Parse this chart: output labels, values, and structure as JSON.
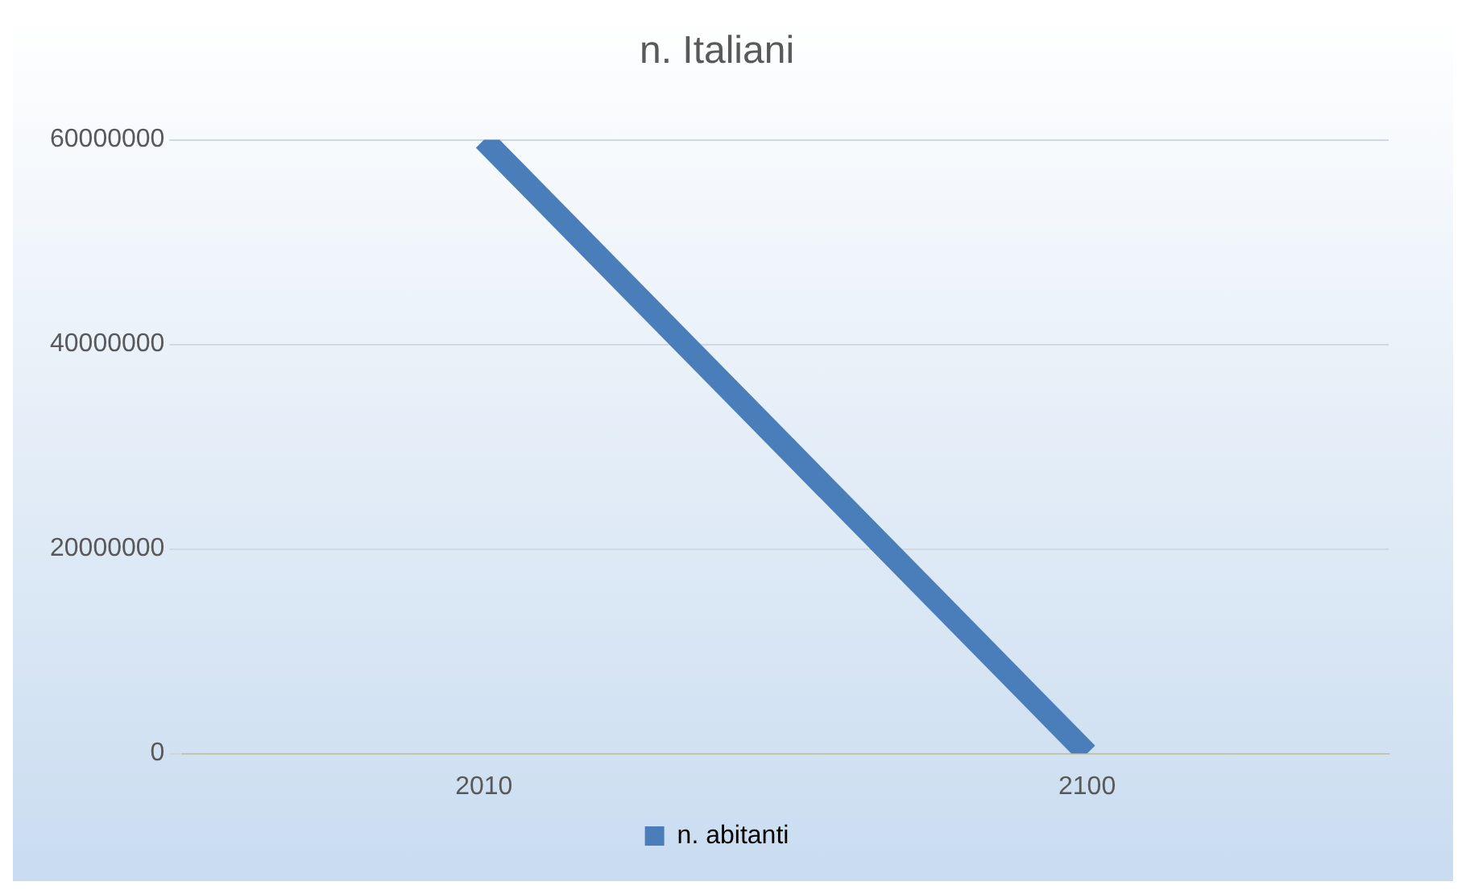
{
  "chart_data": {
    "type": "line",
    "title": "n. Italiani",
    "categories": [
      "2010",
      "2100"
    ],
    "series": [
      {
        "name": "n. abitanti",
        "color": "#4a7ebb",
        "values": [
          60000000,
          0
        ]
      }
    ],
    "ylim": [
      0,
      60000000
    ],
    "yticks": [
      0,
      20000000,
      40000000,
      60000000
    ],
    "grid": "y",
    "legend": "bottom",
    "marker": "none",
    "line_style": "solid"
  }
}
